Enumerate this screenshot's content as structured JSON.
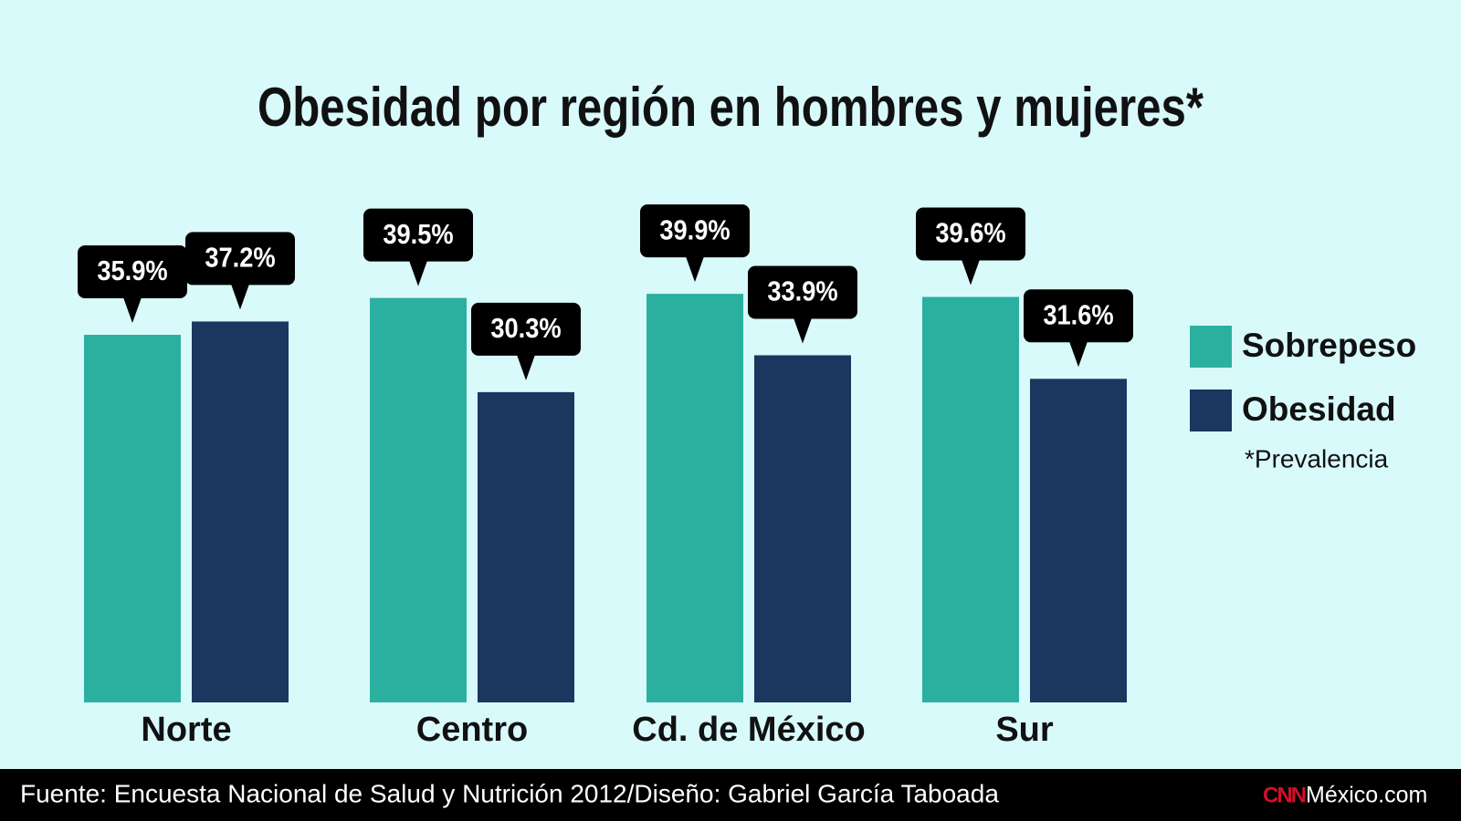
{
  "chart_data": {
    "type": "bar",
    "title": "Obesidad por región en hombres y mujeres*",
    "categories": [
      "Norte",
      "Centro",
      "Cd. de México",
      "Sur"
    ],
    "series": [
      {
        "name": "Sobrepeso",
        "color": "#2bb0a0",
        "values": [
          35.9,
          39.5,
          39.9,
          39.6
        ],
        "value_labels": [
          "35.9%",
          "39.5%",
          "39.9%",
          "39.6%"
        ]
      },
      {
        "name": "Obesidad",
        "color": "#1b365f",
        "values": [
          37.2,
          30.3,
          33.9,
          31.6
        ],
        "value_labels": [
          "37.2%",
          "30.3%",
          "33.9%",
          "31.6%"
        ]
      }
    ],
    "ylim": [
      0,
      40
    ],
    "legend": "right",
    "note": "*Prevalencia",
    "source": "Fuente: Encuesta Nacional de Salud y Nutrición 2012/Diseño: Gabriel García Taboada",
    "brand": [
      "CNN",
      "México.com"
    ]
  }
}
